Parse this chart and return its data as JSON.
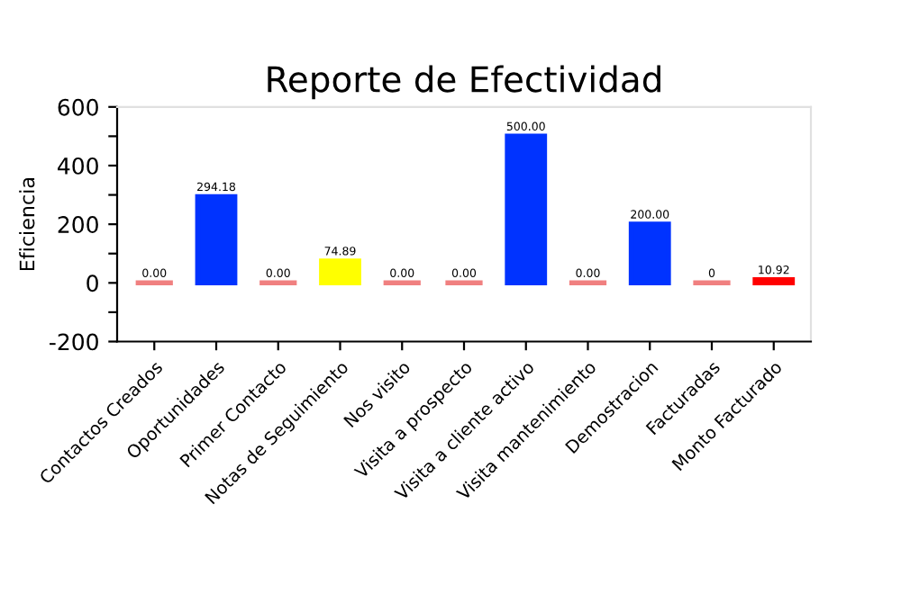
{
  "chart_data": {
    "type": "bar",
    "title": "Reporte de Efectividad",
    "ylabel": "Eficiencia",
    "categories": [
      "Contactos Creados",
      "Oportunidades",
      "Primer Contacto",
      "Notas de Seguimiento",
      "Nos visito",
      "Visita a prospecto",
      "Visita a cliente activo",
      "Visita mantenimiento",
      "Demostracion",
      "Facturadas",
      "Monto Facturado"
    ],
    "values": [
      0,
      294.18,
      0,
      74.89,
      0,
      0,
      500,
      0,
      200,
      0,
      10.92
    ],
    "colors": [
      "#f08080",
      "#0033ff",
      "#f08080",
      "#ffff00",
      "#f08080",
      "#f08080",
      "#0033ff",
      "#f08080",
      "#0033ff",
      "#f08080",
      "#ff0000"
    ],
    "value_labels": [
      "0.00",
      "294.18",
      "0.00",
      "74.89",
      "0.00",
      "0.00",
      "500.00",
      "0.00",
      "200.00",
      "0",
      "10.92"
    ],
    "ylim": [
      -200,
      600
    ],
    "yticks": [
      -200,
      {
        "value": -100,
        "label": null
      },
      0,
      {
        "value": 100,
        "label": null
      },
      200,
      {
        "value": 300,
        "label": null
      },
      400,
      {
        "value": 500,
        "label": null
      },
      600
    ],
    "grid": false,
    "legend": false
  }
}
